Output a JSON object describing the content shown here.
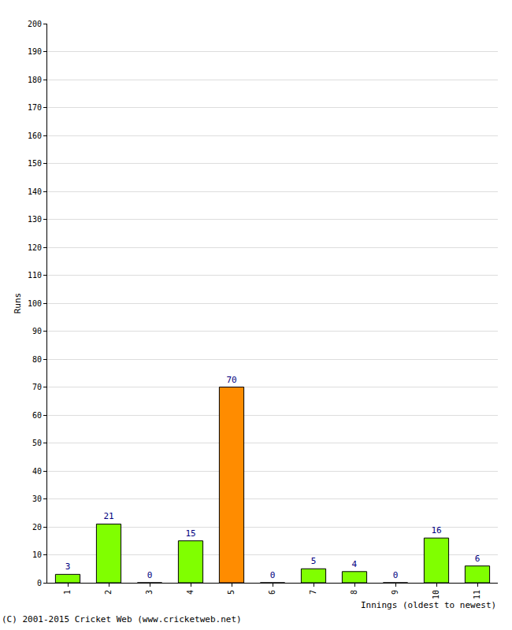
{
  "chart_data": {
    "type": "bar",
    "categories": [
      "1",
      "2",
      "3",
      "4",
      "5",
      "6",
      "7",
      "8",
      "9",
      "10",
      "11"
    ],
    "values": [
      3,
      21,
      0,
      15,
      70,
      0,
      5,
      4,
      0,
      16,
      6
    ],
    "colors": [
      "#80ff00",
      "#80ff00",
      "#80ff00",
      "#80ff00",
      "#ff8c00",
      "#80ff00",
      "#80ff00",
      "#80ff00",
      "#80ff00",
      "#80ff00",
      "#80ff00"
    ],
    "x_label": "Innings (oldest to newest)",
    "y_label": "Runs",
    "annotations": [
      "(C) 2001-2015 Cricket Web (www.cricketweb.net)"
    ],
    "ylim": [
      0,
      200
    ],
    "yticks": [
      0,
      10,
      20,
      30,
      40,
      50,
      60,
      70,
      80,
      90,
      100,
      110,
      120,
      130,
      140,
      150,
      160,
      170,
      180,
      190,
      200
    ],
    "grid": true,
    "data_labels": true
  }
}
